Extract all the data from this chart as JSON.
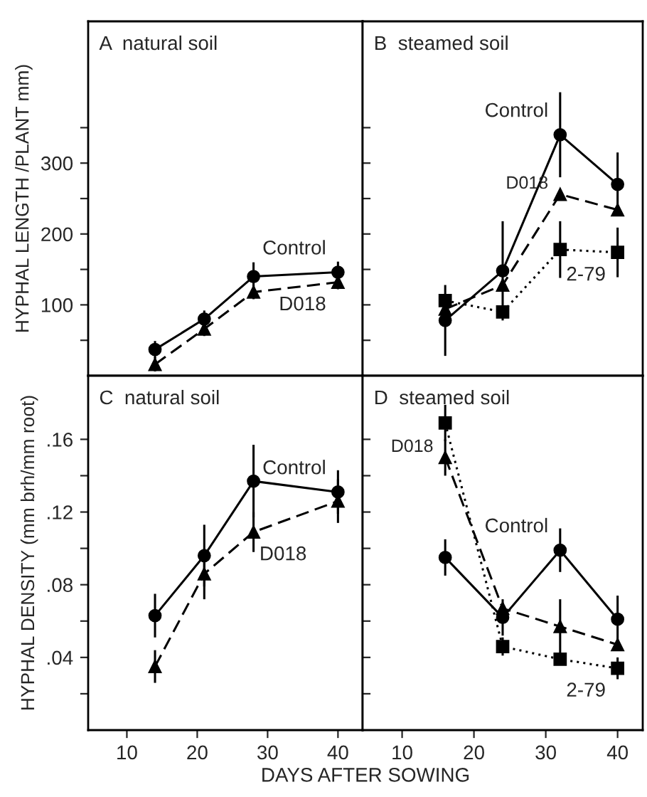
{
  "chart_data": [
    {
      "type": "line",
      "title": "A  natural soil",
      "ylabel": "HYPHAL LENGTH /PLANT mm)",
      "xlim": [
        4.5,
        43.5
      ],
      "xticks": [
        10,
        20,
        30,
        40
      ],
      "ylim": [
        0,
        500
      ],
      "yticks": [
        {
          "value": 50,
          "label": null
        },
        100,
        {
          "value": 150,
          "label": null
        },
        200,
        {
          "value": 250,
          "label": null
        },
        300,
        {
          "value": 350,
          "label": null
        }
      ],
      "tick_labels": "y",
      "grid": false,
      "legend": false,
      "series": [
        {
          "color": "#000000",
          "marker": "circle",
          "line_style": "solid",
          "x": [
            14,
            21,
            28,
            40
          ],
          "values": [
            37,
            80,
            140,
            146
          ],
          "errors": [
            12,
            12,
            20,
            15
          ]
        },
        {
          "color": "#000000",
          "marker": "triangle",
          "line_style": "dashed",
          "x": [
            14,
            21,
            28,
            40
          ],
          "values": [
            16,
            66,
            118,
            132
          ],
          "errors": [
            10,
            10,
            10,
            10
          ]
        }
      ],
      "annotations": [
        {
          "text": "Control",
          "x": 40,
          "y": 146
        },
        {
          "text": "D018",
          "x": 40,
          "y": 132
        }
      ]
    },
    {
      "type": "line",
      "title": "B  steamed soil",
      "xlim": [
        4.5,
        43.5
      ],
      "xticks": [
        10,
        20,
        30,
        40
      ],
      "ylim": [
        0,
        500
      ],
      "yticks": [
        {
          "value": 50,
          "label": null
        },
        100,
        {
          "value": 150,
          "label": null
        },
        200,
        {
          "value": 250,
          "label": null
        },
        300,
        {
          "value": 350,
          "label": null
        }
      ],
      "tick_labels": false,
      "grid": false,
      "legend": false,
      "series": [
        {
          "color": "#000000",
          "marker": "circle",
          "line_style": "solid",
          "x": [
            16,
            24,
            32,
            40
          ],
          "values": [
            78,
            148,
            340,
            270
          ],
          "errors": [
            50,
            70,
            60,
            45
          ]
        },
        {
          "color": "#000000",
          "marker": "triangle",
          "line_style": "dashed",
          "x": [
            16,
            24,
            32,
            40
          ],
          "values": [
            94,
            128,
            256,
            234
          ],
          "errors": [
            null,
            null,
            null,
            null
          ]
        },
        {
          "color": "#000000",
          "marker": "square",
          "line_style": "dotted",
          "x": [
            16,
            24,
            32,
            40
          ],
          "values": [
            106,
            90,
            178,
            174
          ],
          "errors": [
            null,
            null,
            40,
            35
          ]
        }
      ],
      "annotations": [
        {
          "text": "Control",
          "x": 32,
          "y": 340
        },
        {
          "text": "D018",
          "x": 32,
          "y": 256
        },
        {
          "text": "2-79",
          "x": 40,
          "y": 174
        }
      ]
    },
    {
      "type": "line",
      "title": "C  natural soil",
      "ylabel": "HYPHAL DENSITY (mm brh/mm root)",
      "xlabel": "DAYS AFTER SOWING",
      "xlim": [
        4.5,
        43.5
      ],
      "xticks": [
        10,
        20,
        30,
        40
      ],
      "ylim": [
        0,
        0.195
      ],
      "yticks": [
        {
          "value": 0.02,
          "label": null
        },
        {
          "value": 0.04,
          "label": ".04"
        },
        {
          "value": 0.06,
          "label": null
        },
        {
          "value": 0.08,
          "label": ".08"
        },
        {
          "value": 0.1,
          "label": null
        },
        {
          "value": 0.12,
          "label": ".12"
        },
        {
          "value": 0.14,
          "label": null
        },
        {
          "value": 0.16,
          "label": ".16"
        }
      ],
      "grid": false,
      "legend": false,
      "series": [
        {
          "color": "#000000",
          "marker": "circle",
          "line_style": "solid",
          "x": [
            14,
            21,
            28,
            40
          ],
          "values": [
            0.063,
            0.096,
            0.137,
            0.131
          ],
          "errors": [
            0.012,
            0.017,
            0.02,
            0.012
          ]
        },
        {
          "color": "#000000",
          "marker": "triangle",
          "line_style": "dashed",
          "x": [
            14,
            21,
            28,
            40
          ],
          "values": [
            0.035,
            0.086,
            0.109,
            0.126
          ],
          "errors": [
            0.009,
            0.014,
            0.011,
            0.012
          ]
        }
      ],
      "annotations": [
        {
          "text": "Control",
          "x": 40,
          "y": 0.131
        },
        {
          "text": "D018",
          "x": 28,
          "y": 0.109
        }
      ]
    },
    {
      "type": "line",
      "title": "D  steamed soil",
      "xlim": [
        4.5,
        43.5
      ],
      "xticks": [
        10,
        20,
        30,
        40
      ],
      "ylim": [
        0,
        0.195
      ],
      "yticks": [
        {
          "value": 0.02,
          "label": null
        },
        {
          "value": 0.04,
          "label": null
        },
        {
          "value": 0.06,
          "label": null
        },
        {
          "value": 0.08,
          "label": null
        },
        {
          "value": 0.1,
          "label": null
        },
        {
          "value": 0.12,
          "label": null
        },
        {
          "value": 0.14,
          "label": null
        },
        {
          "value": 0.16,
          "label": null
        }
      ],
      "tick_labels": "x",
      "grid": false,
      "legend": false,
      "series": [
        {
          "color": "#000000",
          "marker": "circle",
          "line_style": "solid",
          "x": [
            16,
            24,
            32,
            40
          ],
          "values": [
            0.095,
            0.062,
            0.099,
            0.061
          ],
          "errors": [
            0.01,
            0.01,
            0.012,
            0.013
          ]
        },
        {
          "color": "#000000",
          "marker": "triangle",
          "line_style": "dashed",
          "x": [
            16,
            24,
            32,
            40
          ],
          "values": [
            0.15,
            0.067,
            0.057,
            0.047
          ],
          "errors": [
            0.01,
            null,
            0.015,
            null
          ]
        },
        {
          "color": "#000000",
          "marker": "square",
          "line_style": "dotted",
          "x": [
            16,
            24,
            32,
            40
          ],
          "values": [
            0.169,
            0.046,
            0.039,
            0.034
          ],
          "errors": [
            0.01,
            0.005,
            null,
            0.006
          ]
        }
      ],
      "annotations": [
        {
          "text": "Control",
          "x": 32,
          "y": 0.099
        },
        {
          "text": "D018",
          "x": 16,
          "y": 0.15
        },
        {
          "text": "2-79",
          "x": 40,
          "y": 0.034
        }
      ]
    }
  ]
}
